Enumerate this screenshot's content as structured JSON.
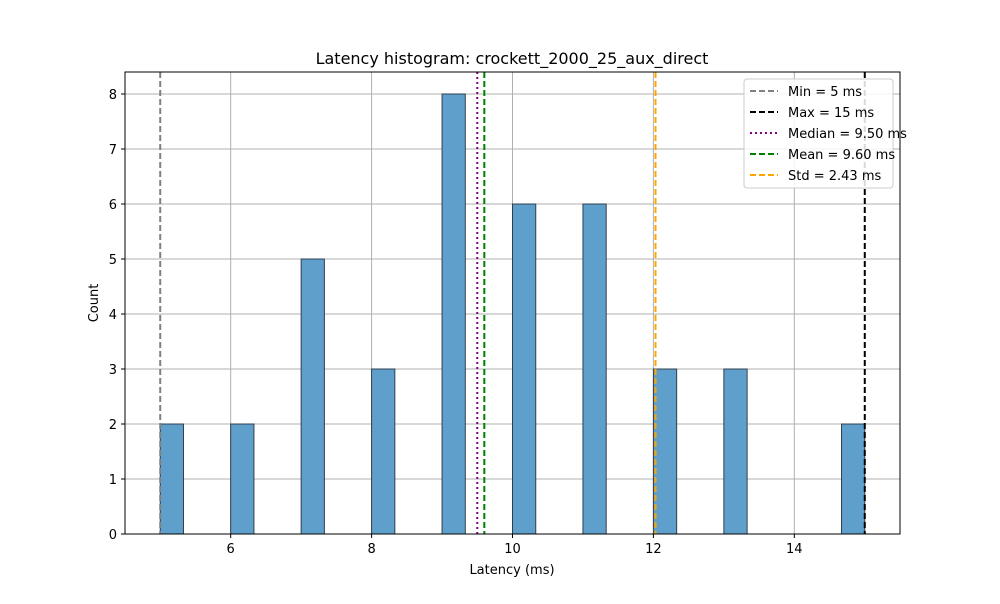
{
  "chart_data": {
    "type": "bar",
    "title": "Latency histogram: crockett_2000_25_aux_direct",
    "xlabel": "Latency (ms)",
    "ylabel": "Count",
    "xlim": [
      4.5,
      15.5
    ],
    "ylim": [
      0,
      8.4
    ],
    "xticks": [
      6,
      8,
      10,
      12,
      14
    ],
    "yticks": [
      0,
      1,
      2,
      3,
      4,
      5,
      6,
      7,
      8
    ],
    "grid": true,
    "bar_color": "#5f9fcb",
    "bar_edge_color": "#2f3f4f",
    "bins": [
      {
        "x0": 5.0,
        "x1": 5.33,
        "count": 2
      },
      {
        "x0": 6.0,
        "x1": 6.33,
        "count": 2
      },
      {
        "x0": 7.0,
        "x1": 7.33,
        "count": 5
      },
      {
        "x0": 8.0,
        "x1": 8.33,
        "count": 3
      },
      {
        "x0": 9.0,
        "x1": 9.33,
        "count": 8
      },
      {
        "x0": 10.0,
        "x1": 10.33,
        "count": 6
      },
      {
        "x0": 11.0,
        "x1": 11.33,
        "count": 6
      },
      {
        "x0": 12.0,
        "x1": 12.33,
        "count": 3
      },
      {
        "x0": 13.0,
        "x1": 13.33,
        "count": 3
      },
      {
        "x0": 14.67,
        "x1": 15.0,
        "count": 2
      }
    ],
    "reference_lines": [
      {
        "label": "Min = 5 ms",
        "x": 5.0,
        "color": "#808080",
        "style": "dashed"
      },
      {
        "label": "Max = 15 ms",
        "x": 15.0,
        "color": "#000000",
        "style": "dashed"
      },
      {
        "label": "Median = 9.50 ms",
        "x": 9.5,
        "color": "#800080",
        "style": "dotted"
      },
      {
        "label": "Mean = 9.60 ms",
        "x": 9.6,
        "color": "#008000",
        "style": "dashed"
      },
      {
        "label": "Std = 2.43 ms",
        "x": 12.03,
        "color": "#ffa500",
        "style": "dashed"
      }
    ],
    "legend_position": "top-right"
  }
}
